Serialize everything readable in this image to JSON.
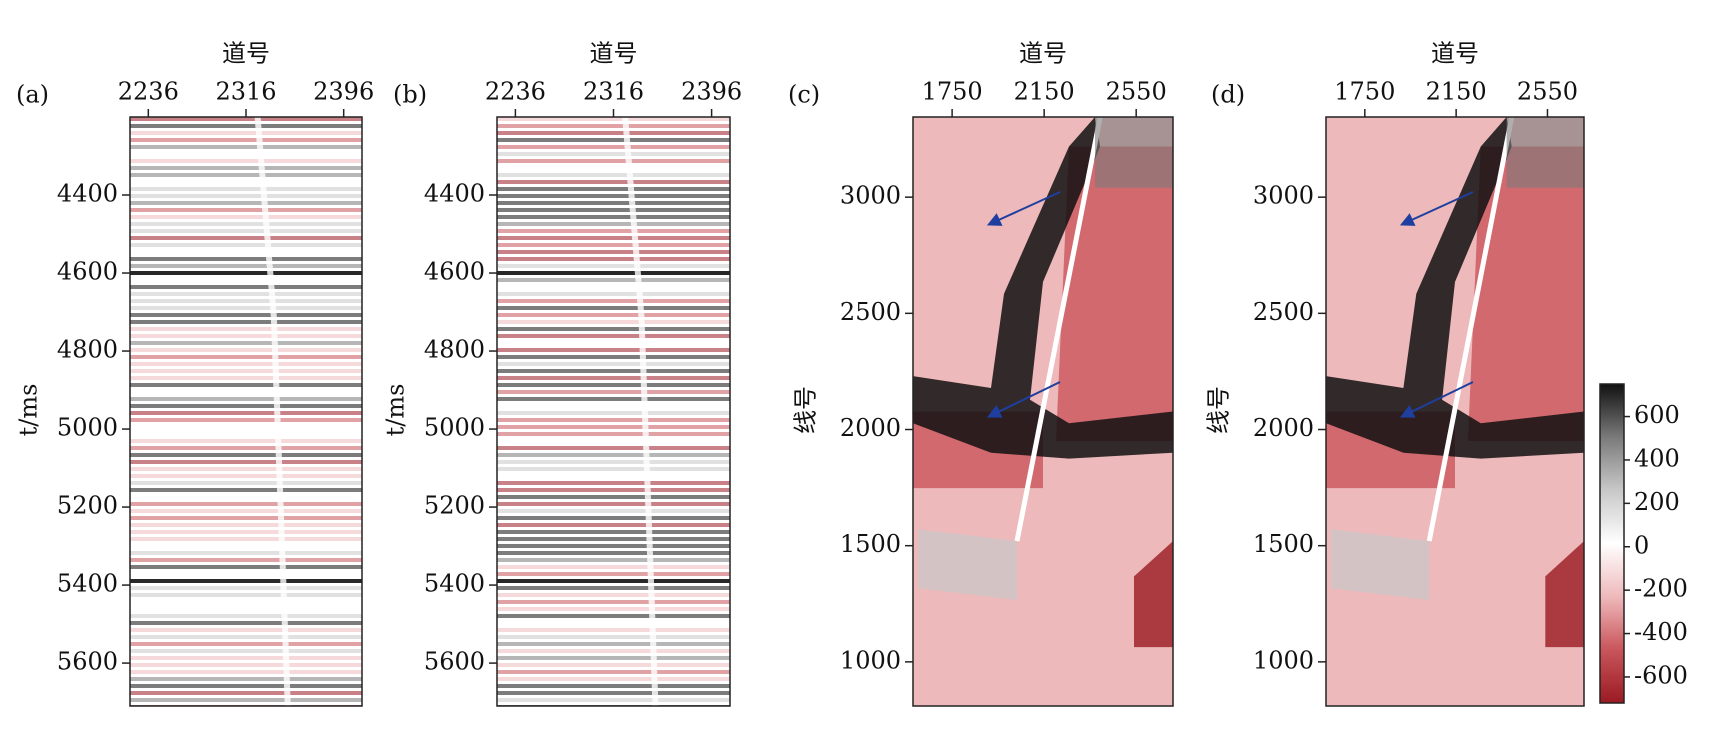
{
  "chart_data": [
    {
      "type": "seismic-section",
      "label": "(a)",
      "xlabel": "道号",
      "ylabel": "t/ms",
      "xlim": [
        2221,
        2411
      ],
      "xticks": [
        2236,
        2316,
        2396
      ],
      "ylim": [
        4200,
        5710
      ],
      "yticks": [
        4400,
        4600,
        4800,
        5000,
        5200,
        5400,
        5600
      ],
      "y_inverted": true
    },
    {
      "type": "seismic-section",
      "label": "(b)",
      "xlabel": "道号",
      "ylabel": "t/ms",
      "xlim": [
        2221,
        2411
      ],
      "xticks": [
        2236,
        2316,
        2396
      ],
      "ylim": [
        4200,
        5710
      ],
      "yticks": [
        4400,
        4600,
        4800,
        5000,
        5200,
        5400,
        5600
      ],
      "y_inverted": true
    },
    {
      "type": "seismic-slice",
      "label": "(c)",
      "xlabel": "道号",
      "ylabel": "线号",
      "xlim": [
        1580,
        2710
      ],
      "xticks": [
        1750,
        2150,
        2550
      ],
      "ylim": [
        810,
        3345
      ],
      "yticks": [
        1000,
        1500,
        2000,
        2500,
        3000
      ]
    },
    {
      "type": "seismic-slice",
      "label": "(d)",
      "xlabel": "道号",
      "ylabel": "线号",
      "xlim": [
        1580,
        2710
      ],
      "xticks": [
        1750,
        2150,
        2550
      ],
      "ylim": [
        810,
        3345
      ],
      "yticks": [
        1000,
        1500,
        2000,
        2500,
        3000
      ],
      "colorbar": {
        "lim": [
          -720,
          750
        ],
        "ticks": [
          -600,
          -400,
          -200,
          0,
          200,
          400,
          600
        ],
        "colormap": [
          "#9a1a22",
          "#c9555b",
          "#eeb9bb",
          "#ffffff",
          "#c8c8c8",
          "#7a7a7a",
          "#111111"
        ]
      }
    }
  ]
}
